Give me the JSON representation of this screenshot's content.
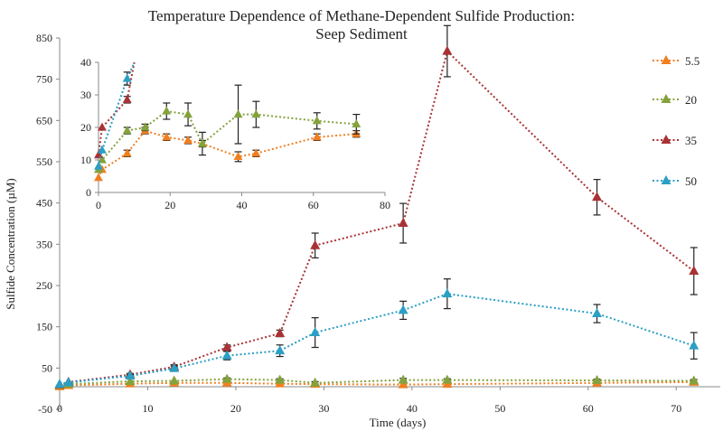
{
  "chart_data": [
    {
      "type": "line",
      "title": "Temperature Dependence of Methane-Dependent Sulfide Production:",
      "subtitle": "Seep Sediment",
      "xlabel": "Time (days)",
      "ylabel": "Sulfide Concentration (µM)",
      "xlim": [
        0,
        75
      ],
      "ylim": [
        -50,
        850
      ],
      "xticks": [
        "0",
        "10",
        "20",
        "30",
        "40",
        "50",
        "60",
        "70"
      ],
      "yticks": [
        "-50",
        "50",
        "150",
        "250",
        "350",
        "450",
        "550",
        "650",
        "750",
        "850"
      ],
      "legend_position": "right",
      "series": [
        {
          "name": "5.5",
          "color": "#f07f21",
          "points": [
            [
              0,
              5,
              0
            ],
            [
              1,
              8,
              0
            ],
            [
              8,
              12,
              0
            ],
            [
              13,
              14,
              0
            ],
            [
              19,
              14,
              0
            ],
            [
              25,
              12,
              0
            ],
            [
              29,
              11,
              0
            ],
            [
              39,
              10,
              0
            ],
            [
              44,
              11,
              0
            ],
            [
              61,
              14,
              0
            ],
            [
              72,
              16,
              0
            ]
          ]
        },
        {
          "name": "20",
          "color": "#84a23c",
          "points": [
            [
              0,
              8,
              0
            ],
            [
              1,
              11,
              0
            ],
            [
              8,
              18,
              0
            ],
            [
              13,
              19,
              0
            ],
            [
              19,
              23,
              3
            ],
            [
              25,
              21,
              3
            ],
            [
              29,
              14,
              3
            ],
            [
              39,
              21,
              4
            ],
            [
              44,
              21,
              3
            ],
            [
              61,
              20,
              3
            ],
            [
              72,
              19,
              3
            ]
          ]
        },
        {
          "name": "35",
          "color": "#a83235",
          "points": [
            [
              0,
              10,
              0
            ],
            [
              1,
              16,
              0
            ],
            [
              8,
              34,
              3
            ],
            [
              13,
              53,
              5
            ],
            [
              19,
              100,
              6
            ],
            [
              25,
              134,
              8
            ],
            [
              29,
              347,
              30
            ],
            [
              39,
              401,
              48
            ],
            [
              44,
              818,
              62
            ],
            [
              61,
              464,
              43
            ],
            [
              72,
              285,
              57
            ]
          ]
        },
        {
          "name": "50",
          "color": "#2b9fc4",
          "points": [
            [
              0,
              11,
              0
            ],
            [
              1,
              15,
              0
            ],
            [
              8,
              31,
              3
            ],
            [
              13,
              49,
              6
            ],
            [
              19,
              80,
              10
            ],
            [
              25,
              92,
              14
            ],
            [
              29,
              136,
              36
            ],
            [
              39,
              190,
              22
            ],
            [
              44,
              230,
              36
            ],
            [
              61,
              182,
              22
            ],
            [
              72,
              104,
              32
            ]
          ]
        }
      ]
    },
    {
      "type": "line",
      "role": "inset",
      "xlim": [
        0,
        80
      ],
      "ylim": [
        0,
        40
      ],
      "xticks": [
        "0",
        "20",
        "40",
        "60",
        "80"
      ],
      "yticks": [
        "0",
        "10",
        "20",
        "30",
        "40"
      ],
      "series": [
        {
          "name": "5.5",
          "color": "#f07f21",
          "points": [
            [
              0,
              4.5,
              0
            ],
            [
              1,
              7,
              0
            ],
            [
              8,
              12,
              1
            ],
            [
              13,
              19,
              1
            ],
            [
              19,
              17,
              1
            ],
            [
              25,
              16,
              1
            ],
            [
              29,
              15,
              1
            ],
            [
              39,
              11,
              1.5
            ],
            [
              44,
              12,
              1
            ],
            [
              61,
              17,
              1
            ],
            [
              72,
              18,
              1
            ]
          ]
        },
        {
          "name": "20",
          "color": "#84a23c",
          "points": [
            [
              0,
              7,
              0
            ],
            [
              1,
              10,
              0
            ],
            [
              8,
              19,
              1
            ],
            [
              13,
              20,
              1
            ],
            [
              19,
              25,
              2.5
            ],
            [
              25,
              24,
              3.5
            ],
            [
              29,
              15,
              3.5
            ],
            [
              39,
              24,
              9
            ],
            [
              44,
              24,
              4
            ],
            [
              61,
              22,
              2.5
            ],
            [
              72,
              21,
              3
            ]
          ]
        },
        {
          "name": "35",
          "color": "#a83235",
          "points": [
            [
              0,
              11.5,
              0
            ],
            [
              1,
              20,
              0
            ],
            [
              8,
              28.5,
              1
            ],
            [
              10,
              40,
              0
            ]
          ]
        },
        {
          "name": "50",
          "color": "#2b9fc4",
          "points": [
            [
              0,
              8,
              0
            ],
            [
              1,
              13,
              0
            ],
            [
              8,
              35,
              2
            ],
            [
              10,
              40,
              0
            ]
          ]
        }
      ]
    }
  ]
}
